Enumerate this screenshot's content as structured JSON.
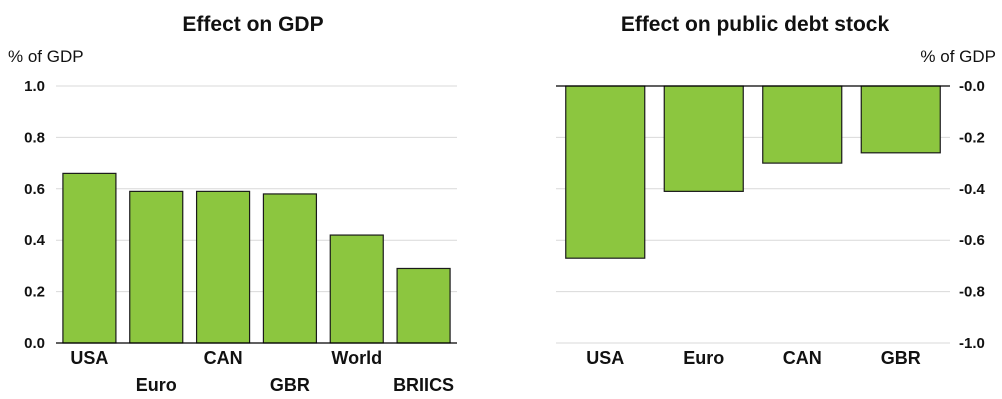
{
  "colors": {
    "bar": "#8cc63f",
    "grid": "#d9d9d9",
    "axis": "#000000"
  },
  "chart_data": [
    {
      "type": "bar",
      "title": "Effect on GDP",
      "ylabel": "% of GDP",
      "categories": [
        "USA",
        "Euro",
        "CAN",
        "GBR",
        "World",
        "BRIICS"
      ],
      "values": [
        0.66,
        0.59,
        0.59,
        0.58,
        0.42,
        0.29
      ],
      "ylim": [
        0,
        1.0
      ],
      "yticks": [
        0.0,
        0.2,
        0.4,
        0.6,
        0.8,
        1.0
      ],
      "ytick_labels": [
        "0.0",
        "0.2",
        "0.4",
        "0.6",
        "0.8",
        "1.0"
      ],
      "grid": true,
      "legend": "none"
    },
    {
      "type": "bar",
      "title": "Effect on public debt stock",
      "ylabel": "% of GDP",
      "categories": [
        "USA",
        "Euro",
        "CAN",
        "GBR"
      ],
      "values": [
        -0.67,
        -0.41,
        -0.3,
        -0.26
      ],
      "ylim": [
        -1.0,
        0.0
      ],
      "yticks": [
        0.0,
        -0.2,
        -0.4,
        -0.6,
        -0.8,
        -1.0
      ],
      "ytick_labels": [
        "-0.0",
        "-0.2",
        "-0.4",
        "-0.6",
        "-0.8",
        "-1.0"
      ],
      "grid": true,
      "legend": "none"
    }
  ]
}
